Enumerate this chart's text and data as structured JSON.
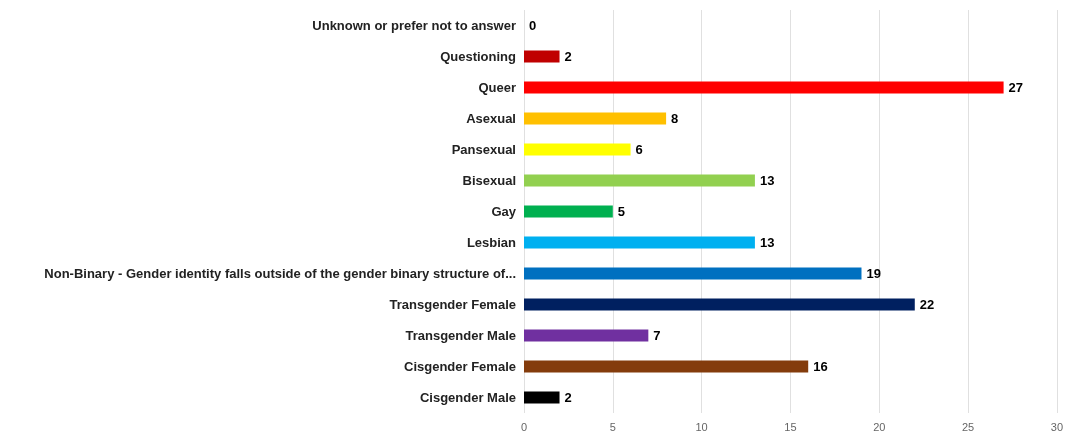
{
  "chart_data": {
    "type": "bar",
    "orientation": "horizontal",
    "categories": [
      "Unknown or prefer not to answer",
      "Questioning",
      "Queer",
      "Asexual",
      "Pansexual",
      "Bisexual",
      "Gay",
      "Lesbian",
      "Non-Binary - Gender identity falls outside of the gender binary structure of...",
      "Transgender Female",
      "Transgender Male",
      "Cisgender Female",
      "Cisgender Male"
    ],
    "values": [
      0,
      2,
      27,
      8,
      6,
      13,
      5,
      13,
      19,
      22,
      7,
      16,
      2
    ],
    "colors": [
      "#000000",
      "#c00000",
      "#ff0000",
      "#ffc000",
      "#ffff00",
      "#92d050",
      "#00b050",
      "#00b0f0",
      "#0070c0",
      "#002060",
      "#7030a0",
      "#843c0c",
      "#000000"
    ],
    "xlim": [
      0,
      30
    ],
    "xticks": [
      0,
      5,
      10,
      15,
      20,
      25,
      30
    ],
    "grid": "x",
    "data_labels": true
  }
}
